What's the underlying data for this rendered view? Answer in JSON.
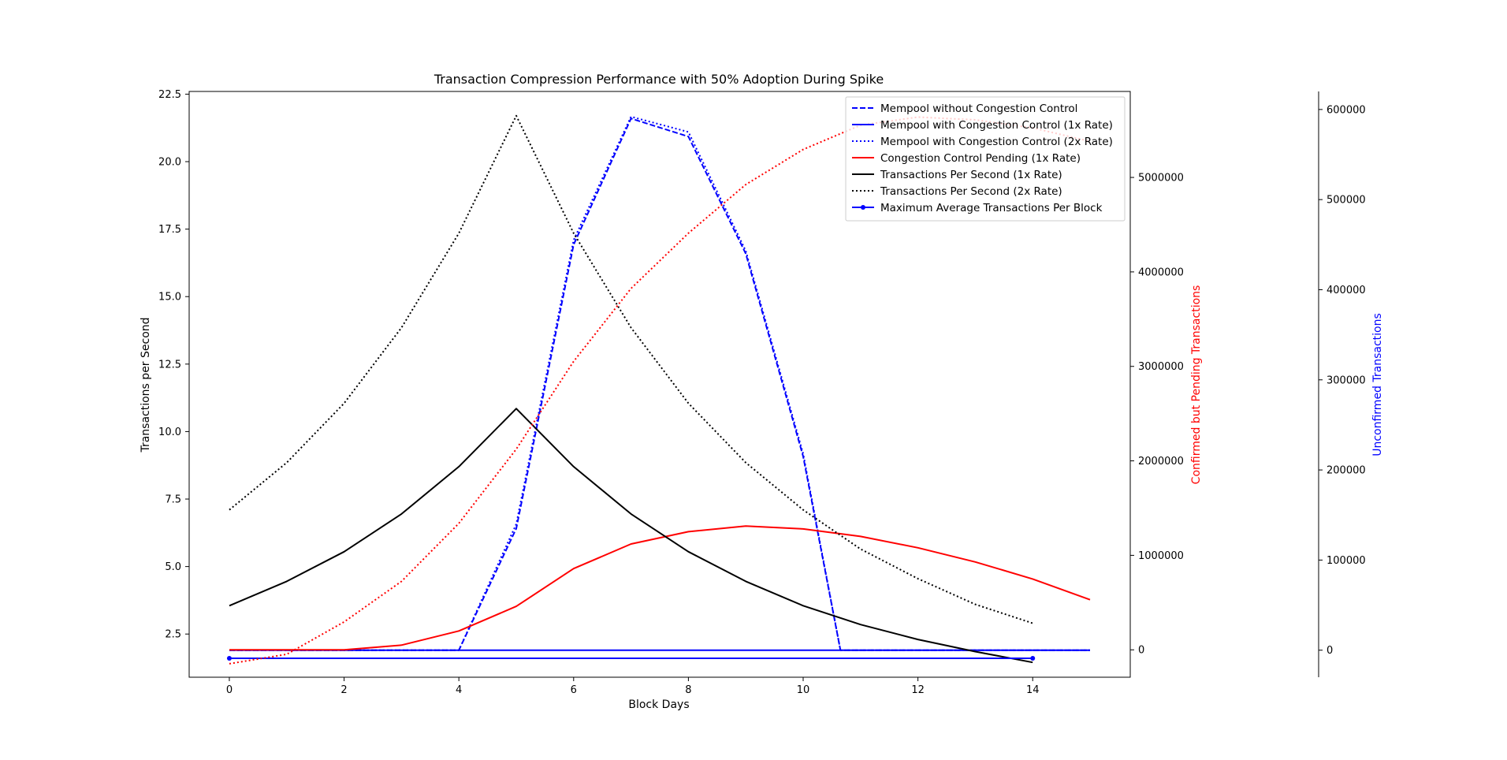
{
  "chart_data": {
    "type": "line",
    "title": "Transaction Compression Performance with 50% Adoption During Spike",
    "xlabel": "Block Days",
    "xlim": [
      -0.7,
      15.7
    ],
    "xticks": [
      0,
      2,
      4,
      6,
      8,
      10,
      12,
      14
    ],
    "axes": {
      "left": {
        "label": "Transactions per Second",
        "ylim": [
          0.9,
          22.6
        ],
        "ticks": [
          2.5,
          5.0,
          7.5,
          10.0,
          12.5,
          15.0,
          17.5,
          20.0,
          22.5
        ],
        "tick_labels": [
          "2.5",
          "5.0",
          "7.5",
          "10.0",
          "12.5",
          "15.0",
          "17.5",
          "20.0",
          "22.5"
        ],
        "color": "#000000"
      },
      "right1": {
        "label": "Confirmed but Pending Transactions",
        "ylim": [
          -290000,
          5910000
        ],
        "ticks": [
          0,
          1000000,
          2000000,
          3000000,
          4000000,
          5000000
        ],
        "tick_labels": [
          "0",
          "1000000",
          "2000000",
          "3000000",
          "4000000",
          "5000000"
        ],
        "color": "#ff0000"
      },
      "right2": {
        "label": "Unconfirmed Transactions",
        "ylim": [
          -30000,
          620000
        ],
        "ticks": [
          0,
          100000,
          200000,
          300000,
          400000,
          500000,
          600000
        ],
        "tick_labels": [
          "0",
          "100000",
          "200000",
          "300000",
          "400000",
          "500000",
          "600000"
        ],
        "color": "#0000ff"
      }
    },
    "legend_position": "top-right",
    "series": [
      {
        "name": "Mempool without Congestion Control",
        "axis": "right2",
        "color": "#0000ff",
        "dash": "dashed",
        "marker": false,
        "x": [
          0,
          1,
          2,
          3,
          4,
          5,
          6,
          7,
          8,
          9,
          10,
          10.65,
          11,
          12,
          13,
          14,
          15
        ],
        "values": [
          0,
          0,
          0,
          0,
          0,
          135000,
          450000,
          590000,
          570000,
          440000,
          215000,
          0,
          0,
          0,
          0,
          0,
          0
        ]
      },
      {
        "name": "Mempool with Congestion Control (1x Rate)",
        "axis": "right2",
        "color": "#0000ff",
        "dash": "solid",
        "marker": false,
        "x": [
          0,
          1,
          2,
          3,
          4,
          5,
          6,
          7,
          8,
          9,
          10,
          11,
          12,
          13,
          14,
          15
        ],
        "values": [
          0,
          0,
          0,
          0,
          0,
          0,
          0,
          0,
          0,
          0,
          0,
          0,
          0,
          0,
          0,
          0
        ]
      },
      {
        "name": "Mempool with Congestion Control (2x Rate)",
        "axis": "right2",
        "color": "#0000ff",
        "dash": "dotted",
        "marker": false,
        "x": [
          0,
          1,
          2,
          3,
          4,
          5,
          6,
          7,
          8,
          9,
          10,
          10.65,
          11,
          12,
          13,
          14,
          15
        ],
        "values": [
          0,
          0,
          0,
          0,
          0,
          140000,
          455000,
          592000,
          575000,
          443000,
          218000,
          0,
          0,
          0,
          0,
          0,
          0
        ]
      },
      {
        "name": "Congestion Control Pending (1x Rate)",
        "axis": "right1",
        "color": "#ff0000",
        "dash": "solid",
        "marker": false,
        "x": [
          0,
          1,
          2,
          3,
          4,
          5,
          6,
          7,
          8,
          9,
          10,
          11,
          12,
          13,
          14,
          15
        ],
        "values": [
          0,
          0,
          0,
          50000,
          200000,
          460000,
          860000,
          1120000,
          1250000,
          1310000,
          1280000,
          1200000,
          1080000,
          930000,
          750000,
          530000
        ]
      },
      {
        "name": "Transactions Per Second (1x Rate)",
        "axis": "left",
        "color": "#000000",
        "dash": "solid",
        "marker": false,
        "x": [
          0,
          1,
          2,
          3,
          4,
          5,
          6,
          7,
          8,
          9,
          10,
          11,
          12,
          13,
          14
        ],
        "values": [
          3.55,
          4.45,
          5.55,
          6.95,
          8.7,
          10.85,
          8.7,
          6.95,
          5.55,
          4.45,
          3.55,
          2.85,
          2.3,
          1.85,
          1.45
        ]
      },
      {
        "name": "Transactions Per Second (2x Rate)",
        "axis": "left",
        "color": "#000000",
        "dash": "dotted",
        "marker": false,
        "x": [
          0,
          1,
          2,
          3,
          4,
          5,
          6,
          7,
          8,
          9,
          10,
          11,
          12,
          13,
          14
        ],
        "values": [
          7.1,
          8.85,
          11.05,
          13.85,
          17.35,
          21.7,
          17.35,
          13.85,
          11.05,
          8.85,
          7.1,
          5.65,
          4.55,
          3.6,
          2.9
        ]
      },
      {
        "name": "Maximum Average Transactions Per Block",
        "axis": "left",
        "color": "#0000ff",
        "dash": "solid",
        "marker": true,
        "x": [
          0,
          14
        ],
        "values": [
          1.6,
          1.6
        ]
      },
      {
        "name": "",
        "axis": "left",
        "color": "#ff0000",
        "dash": "dotted",
        "marker": false,
        "legend": false,
        "x": [
          0,
          1,
          2,
          3,
          4,
          5,
          6,
          7,
          8,
          9,
          10,
          11,
          12,
          13,
          14,
          15
        ],
        "values": [
          1.4,
          1.75,
          2.95,
          4.45,
          6.6,
          9.35,
          12.6,
          15.3,
          17.35,
          19.15,
          20.45,
          21.35,
          21.65,
          21.55,
          21.25,
          20.75
        ]
      }
    ]
  }
}
